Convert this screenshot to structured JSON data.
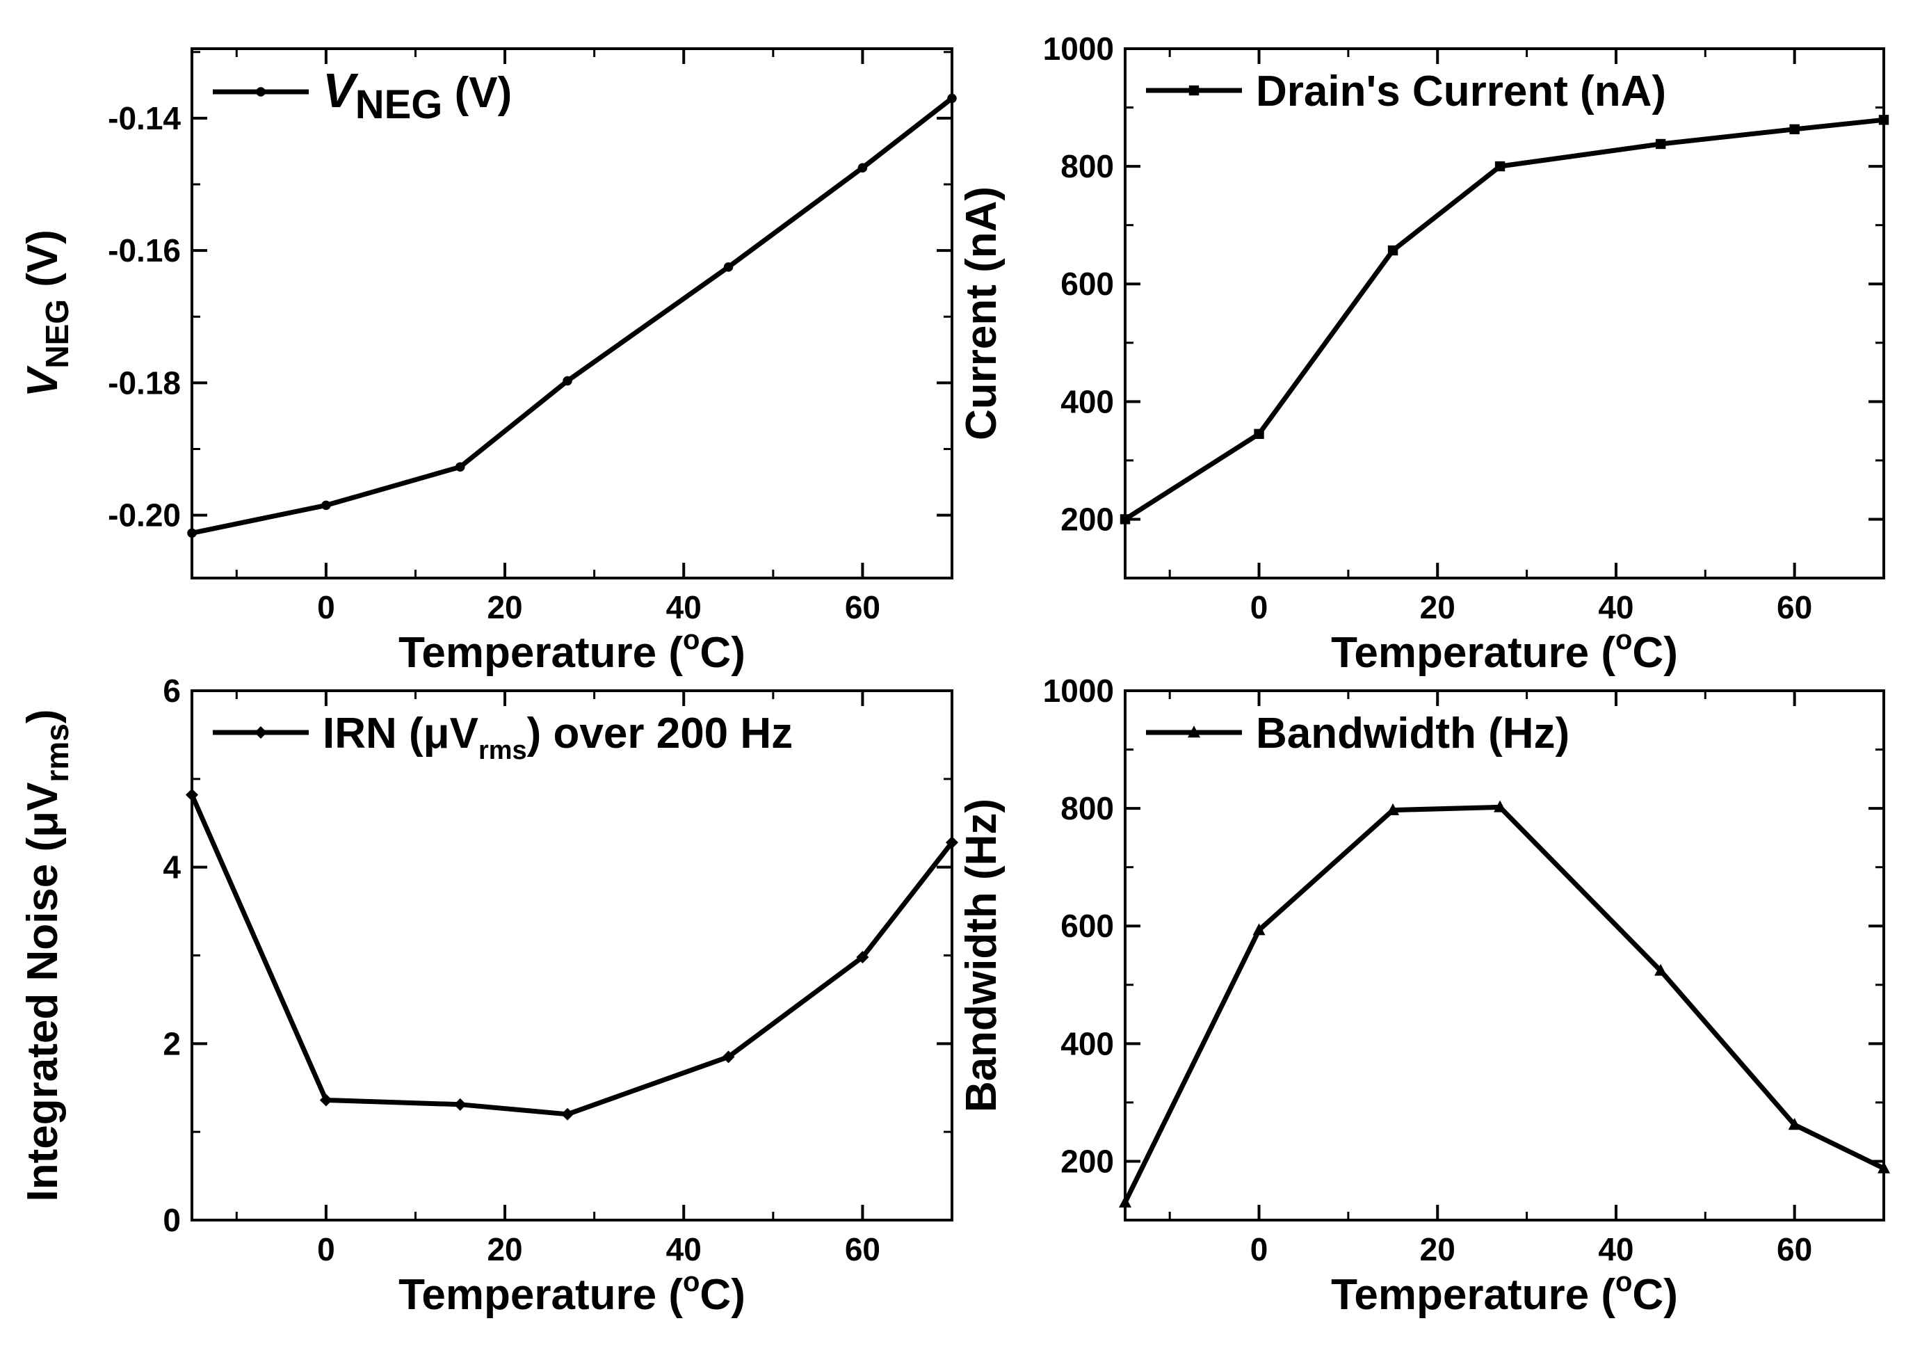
{
  "chart_data": [
    {
      "id": "vneg",
      "type": "line",
      "xlabel": "Temperature (°C)",
      "xlabel_parts": {
        "main": "Temperature (",
        "sup": "o",
        "tail": "C)"
      },
      "ylabel_parts": {
        "main": "V",
        "sub": "NEG",
        "tail": " (V)"
      },
      "legend_parts": {
        "main": "V",
        "sub": "NEG",
        "tail": " (V)"
      },
      "legend_position": "top-left",
      "marker": "circle",
      "xlim": [
        -15,
        70
      ],
      "ylim": [
        -0.2095,
        -0.1295
      ],
      "xticks": [
        0,
        20,
        40,
        60
      ],
      "xtick_labels": [
        "0",
        "20",
        "40",
        "60"
      ],
      "yticks": [
        -0.2,
        -0.18,
        -0.16,
        -0.14
      ],
      "ytick_labels": [
        "-0.20",
        "-0.18",
        "-0.16",
        "-0.14"
      ],
      "x": [
        -15,
        0,
        15,
        27,
        45,
        60,
        70
      ],
      "values": [
        -0.2027,
        -0.1985,
        -0.1927,
        -0.1797,
        -0.1625,
        -0.1475,
        -0.137
      ]
    },
    {
      "id": "current",
      "type": "line",
      "xlabel": "Temperature (°C)",
      "xlabel_parts": {
        "main": "Temperature (",
        "sup": "o",
        "tail": "C)"
      },
      "ylabel": "Current (nA)",
      "legend": "Drain's Current (nA)",
      "legend_position": "top-left",
      "marker": "square",
      "xlim": [
        -15,
        70
      ],
      "ylim": [
        100,
        1000
      ],
      "xticks": [
        0,
        20,
        40,
        60
      ],
      "xtick_labels": [
        "0",
        "20",
        "40",
        "60"
      ],
      "yticks": [
        200,
        400,
        600,
        800,
        1000
      ],
      "ytick_labels": [
        "200",
        "400",
        "600",
        "800",
        "1000"
      ],
      "x": [
        -15,
        0,
        15,
        27,
        45,
        60,
        70
      ],
      "values": [
        200,
        345,
        657,
        800,
        838,
        863,
        879
      ]
    },
    {
      "id": "noise",
      "type": "line",
      "xlabel": "Temperature (°C)",
      "xlabel_parts": {
        "main": "Temperature (",
        "sup": "o",
        "tail": "C)"
      },
      "ylabel_parts": {
        "main": "Integrated Noise (μV",
        "sub": "rms",
        "tail": ")"
      },
      "legend_parts": {
        "main": "IRN (μV",
        "sub": "rms",
        "tail": ") over 200 Hz"
      },
      "legend_position": "top-left",
      "marker": "diamond",
      "xlim": [
        -15,
        70
      ],
      "ylim": [
        0,
        6
      ],
      "xticks": [
        0,
        20,
        40,
        60
      ],
      "xtick_labels": [
        "0",
        "20",
        "40",
        "60"
      ],
      "yticks": [
        0,
        2,
        4,
        6
      ],
      "ytick_labels": [
        "0",
        "2",
        "4",
        "6"
      ],
      "x": [
        -15,
        0,
        15,
        27,
        45,
        60,
        70
      ],
      "values": [
        4.82,
        1.36,
        1.31,
        1.2,
        1.85,
        2.98,
        4.28
      ]
    },
    {
      "id": "bandwidth",
      "type": "line",
      "xlabel": "Temperature (°C)",
      "xlabel_parts": {
        "main": "Temperature (",
        "sup": "o",
        "tail": "C)"
      },
      "ylabel": "Bandwidth (Hz)",
      "legend": "Bandwidth (Hz)",
      "legend_position": "top-left",
      "marker": "triangle",
      "xlim": [
        -15,
        70
      ],
      "ylim": [
        100,
        1000
      ],
      "xticks": [
        0,
        20,
        40,
        60
      ],
      "xtick_labels": [
        "0",
        "20",
        "40",
        "60"
      ],
      "yticks": [
        200,
        400,
        600,
        800,
        1000
      ],
      "ytick_labels": [
        "200",
        "400",
        "600",
        "800",
        "1000"
      ],
      "x": [
        -15,
        0,
        15,
        27,
        45,
        60,
        70
      ],
      "values": [
        130,
        593,
        797,
        802,
        524,
        262,
        188
      ]
    }
  ]
}
